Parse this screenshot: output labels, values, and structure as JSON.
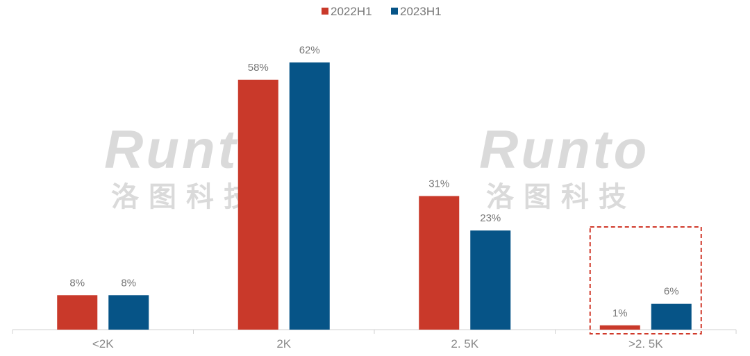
{
  "chart_data": {
    "type": "bar",
    "title": "",
    "xlabel": "",
    "ylabel": "",
    "categories": [
      "<2K",
      "2K",
      "2.5K",
      ">2.5K"
    ],
    "category_labels_display": [
      "<2K",
      "2K",
      "2. 5K",
      ">2. 5K"
    ],
    "series": [
      {
        "name": "2022H1",
        "color": "#C9392A",
        "values": [
          8,
          58,
          31,
          1
        ]
      },
      {
        "name": "2023H1",
        "color": "#065487",
        "values": [
          8,
          62,
          23,
          6
        ]
      }
    ],
    "value_format": "%",
    "ylim": [
      0,
      62
    ],
    "grid": false,
    "legend": "top-center",
    "highlight": {
      "category": ">2.5K",
      "style": "red dashed box"
    }
  },
  "watermark": {
    "en": "Runto",
    "cn": "洛图科技"
  }
}
